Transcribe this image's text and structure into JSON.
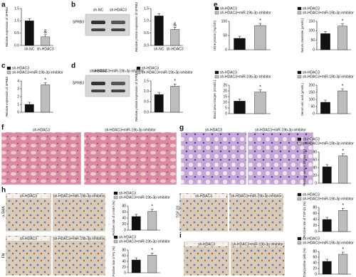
{
  "figure": {
    "panels": [
      "a",
      "b",
      "c",
      "d",
      "e",
      "f",
      "g",
      "h",
      "i"
    ],
    "blot_b": {
      "protein": "SFRB3",
      "lanes": [
        "sh-NC",
        "sh-HDAC3"
      ]
    },
    "blot_d": {
      "protein": "SFRB3",
      "lanes": [
        "sh-HDAC3",
        "sh-HDAC3+miR-19b-3p inhibitor"
      ]
    },
    "image_labels": [
      "sh-HDAC3",
      "sh-HDAC3+miR-19b-3p inhibitor"
    ],
    "stains": [
      "α-SMA",
      "TGF-β1",
      "FN"
    ]
  },
  "chart_data": [
    {
      "type": "bar",
      "ylabel": "Relative expression of SFRB3",
      "categories": [
        "sh-NC",
        "sh-HDAC3"
      ],
      "values": [
        1.0,
        0.35
      ],
      "colors": [
        "#111111",
        "#bdbdbd"
      ],
      "annotation": "&",
      "ylim": [
        0,
        1.5
      ],
      "yticks": [
        {
          "value": 0,
          "label": "0.0"
        },
        {
          "value": 0.5,
          "label": "0.5"
        },
        {
          "value": 1,
          "label": "1.0"
        },
        {
          "value": 1.5,
          "label": "1.5"
        }
      ]
    },
    {
      "type": "bar",
      "ylabel": "Relative protein expression of SFRB3",
      "categories": [
        "sh-NC",
        "sh-HDAC3"
      ],
      "values": [
        1.2,
        0.65
      ],
      "colors": [
        "#111111",
        "#bdbdbd"
      ],
      "annotation": "&",
      "ylim": [
        0,
        1.5
      ],
      "yticks": [
        {
          "value": 0,
          "label": "0.0"
        },
        {
          "value": 0.5,
          "label": "0.5"
        },
        {
          "value": 1,
          "label": "1.0"
        },
        {
          "value": 1.5,
          "label": "1.5"
        }
      ]
    },
    {
      "type": "bar",
      "ylabel": "Relative expression of SFRB3",
      "series": [
        {
          "name": "sh-HDAC3",
          "color": "#111111",
          "values": [
            1.0
          ]
        },
        {
          "name": "sh-HDAC3+miR-19b-3p inhibitor",
          "color": "#bdbdbd",
          "values": [
            3.5
          ]
        }
      ],
      "annotation": "*",
      "ylim": [
        0,
        4
      ],
      "yticks": [
        0,
        1,
        2,
        3,
        4
      ]
    },
    {
      "type": "bar",
      "ylabel": "Relative protein expression of SFRB3",
      "series": [
        {
          "name": "sh-HDAC3",
          "color": "#111111",
          "values": [
            0.85
          ]
        },
        {
          "name": "sh-HDAC3+miR-19b-3p inhibitor",
          "color": "#bdbdbd",
          "values": [
            1.25
          ]
        }
      ],
      "annotation": "*",
      "ylim": [
        0,
        1.5
      ],
      "yticks": [
        {
          "value": 0,
          "label": "0.0"
        },
        {
          "value": 0.5,
          "label": "0.5"
        },
        {
          "value": 1,
          "label": "1.0"
        },
        {
          "value": 1.5,
          "label": "1.5"
        }
      ]
    },
    {
      "type": "bar",
      "ylabel": "Urine protein (mg/24h)",
      "series": [
        {
          "name": "sh-HDAC3",
          "color": "#111111",
          "values": [
            40
          ]
        },
        {
          "name": "sh-HDAC3+miR-19b-3p inhibitor",
          "color": "#bdbdbd",
          "values": [
            85
          ]
        }
      ],
      "annotation": "*",
      "ylim": [
        0,
        100
      ],
      "yticks": [
        0,
        50,
        100
      ]
    },
    {
      "type": "bar",
      "ylabel": "Serum creatinine (μmol/L)",
      "series": [
        {
          "name": "sh-HDAC3",
          "color": "#111111",
          "values": [
            85
          ]
        },
        {
          "name": "sh-HDAC3+miR-19b-3p inhibitor",
          "color": "#bdbdbd",
          "values": [
            125
          ]
        }
      ],
      "annotation": "*",
      "ylim": [
        0,
        150
      ],
      "yticks": [
        0,
        50,
        100,
        150
      ]
    },
    {
      "type": "bar",
      "ylabel": "Blood urea nitrogen (mmol/L)",
      "series": [
        {
          "name": "sh-HDAC3",
          "color": "#111111",
          "values": [
            11
          ]
        },
        {
          "name": "sh-HDAC3+miR-19b-3p inhibitor",
          "color": "#bdbdbd",
          "values": [
            19
          ]
        }
      ],
      "annotation": "*",
      "ylim": [
        0,
        25
      ],
      "yticks": [
        0,
        5,
        10,
        15,
        20,
        25
      ]
    },
    {
      "type": "bar",
      "ylabel": "Serum uric acid (μmol/L)",
      "series": [
        {
          "name": "sh-HDAC3",
          "color": "#111111",
          "values": [
            80
          ]
        },
        {
          "name": "sh-HDAC3+miR-19b-3p inhibitor",
          "color": "#bdbdbd",
          "values": [
            160
          ]
        }
      ],
      "annotation": "*",
      "ylim": [
        0,
        200
      ],
      "yticks": [
        0,
        50,
        100,
        150,
        200
      ]
    },
    {
      "type": "bar",
      "ylabel": "Relative area of fibrosis (%)",
      "series": [
        {
          "name": "sh-HDAC3",
          "color": "#111111",
          "values": [
            42
          ]
        },
        {
          "name": "sh-HDAC3+miR-19b-3p inhibitor",
          "color": "#bdbdbd",
          "values": [
            70
          ]
        }
      ],
      "annotation": "*",
      "ylim": [
        0,
        80
      ],
      "yticks": [
        0,
        20,
        40,
        60,
        80
      ]
    },
    {
      "type": "bar",
      "ylabel": "Positive rate of α-SMA (%)",
      "series": [
        {
          "name": "sh-HDAC3",
          "color": "#111111",
          "values": [
            45
          ]
        },
        {
          "name": "sh-HDAC3+miR-19b-3p inhibitor",
          "color": "#bdbdbd",
          "values": [
            62
          ]
        }
      ],
      "annotation": "*",
      "ylim": [
        0,
        80
      ],
      "yticks": [
        0,
        20,
        40,
        60,
        80
      ]
    },
    {
      "type": "bar",
      "ylabel": "Positive rate of TGF-β1 (%)",
      "series": [
        {
          "name": "sh-HDAC3",
          "color": "#111111",
          "values": [
            40
          ]
        },
        {
          "name": "sh-HDAC3+miR-19b-3p inhibitor",
          "color": "#bdbdbd",
          "values": [
            70
          ]
        }
      ],
      "annotation": "*",
      "ylim": [
        0,
        80
      ],
      "yticks": [
        0,
        20,
        40,
        60,
        80
      ]
    },
    {
      "type": "bar",
      "ylabel": "Positive rate of FN (%)",
      "series": [
        {
          "name": "sh-HDAC3",
          "color": "#111111",
          "values": [
            45
          ]
        },
        {
          "name": "sh-HDAC3+miR-19b-3p inhibitor",
          "color": "#bdbdbd",
          "values": [
            62
          ]
        }
      ],
      "annotation": "*",
      "ylim": [
        0,
        80
      ],
      "yticks": [
        0,
        20,
        40,
        60,
        80
      ]
    },
    {
      "type": "bar",
      "ylabel": "Total positive cells (%)",
      "series": [
        {
          "name": "sh-HDAC3",
          "color": "#111111",
          "values": [
            45
          ]
        },
        {
          "name": "sh-HDAC3+miR-19b-3p inhibitor",
          "color": "#bdbdbd",
          "values": [
            70
          ]
        }
      ],
      "annotation": "*",
      "ylim": [
        0,
        80
      ],
      "yticks": [
        0,
        20,
        40,
        60,
        80
      ]
    }
  ]
}
